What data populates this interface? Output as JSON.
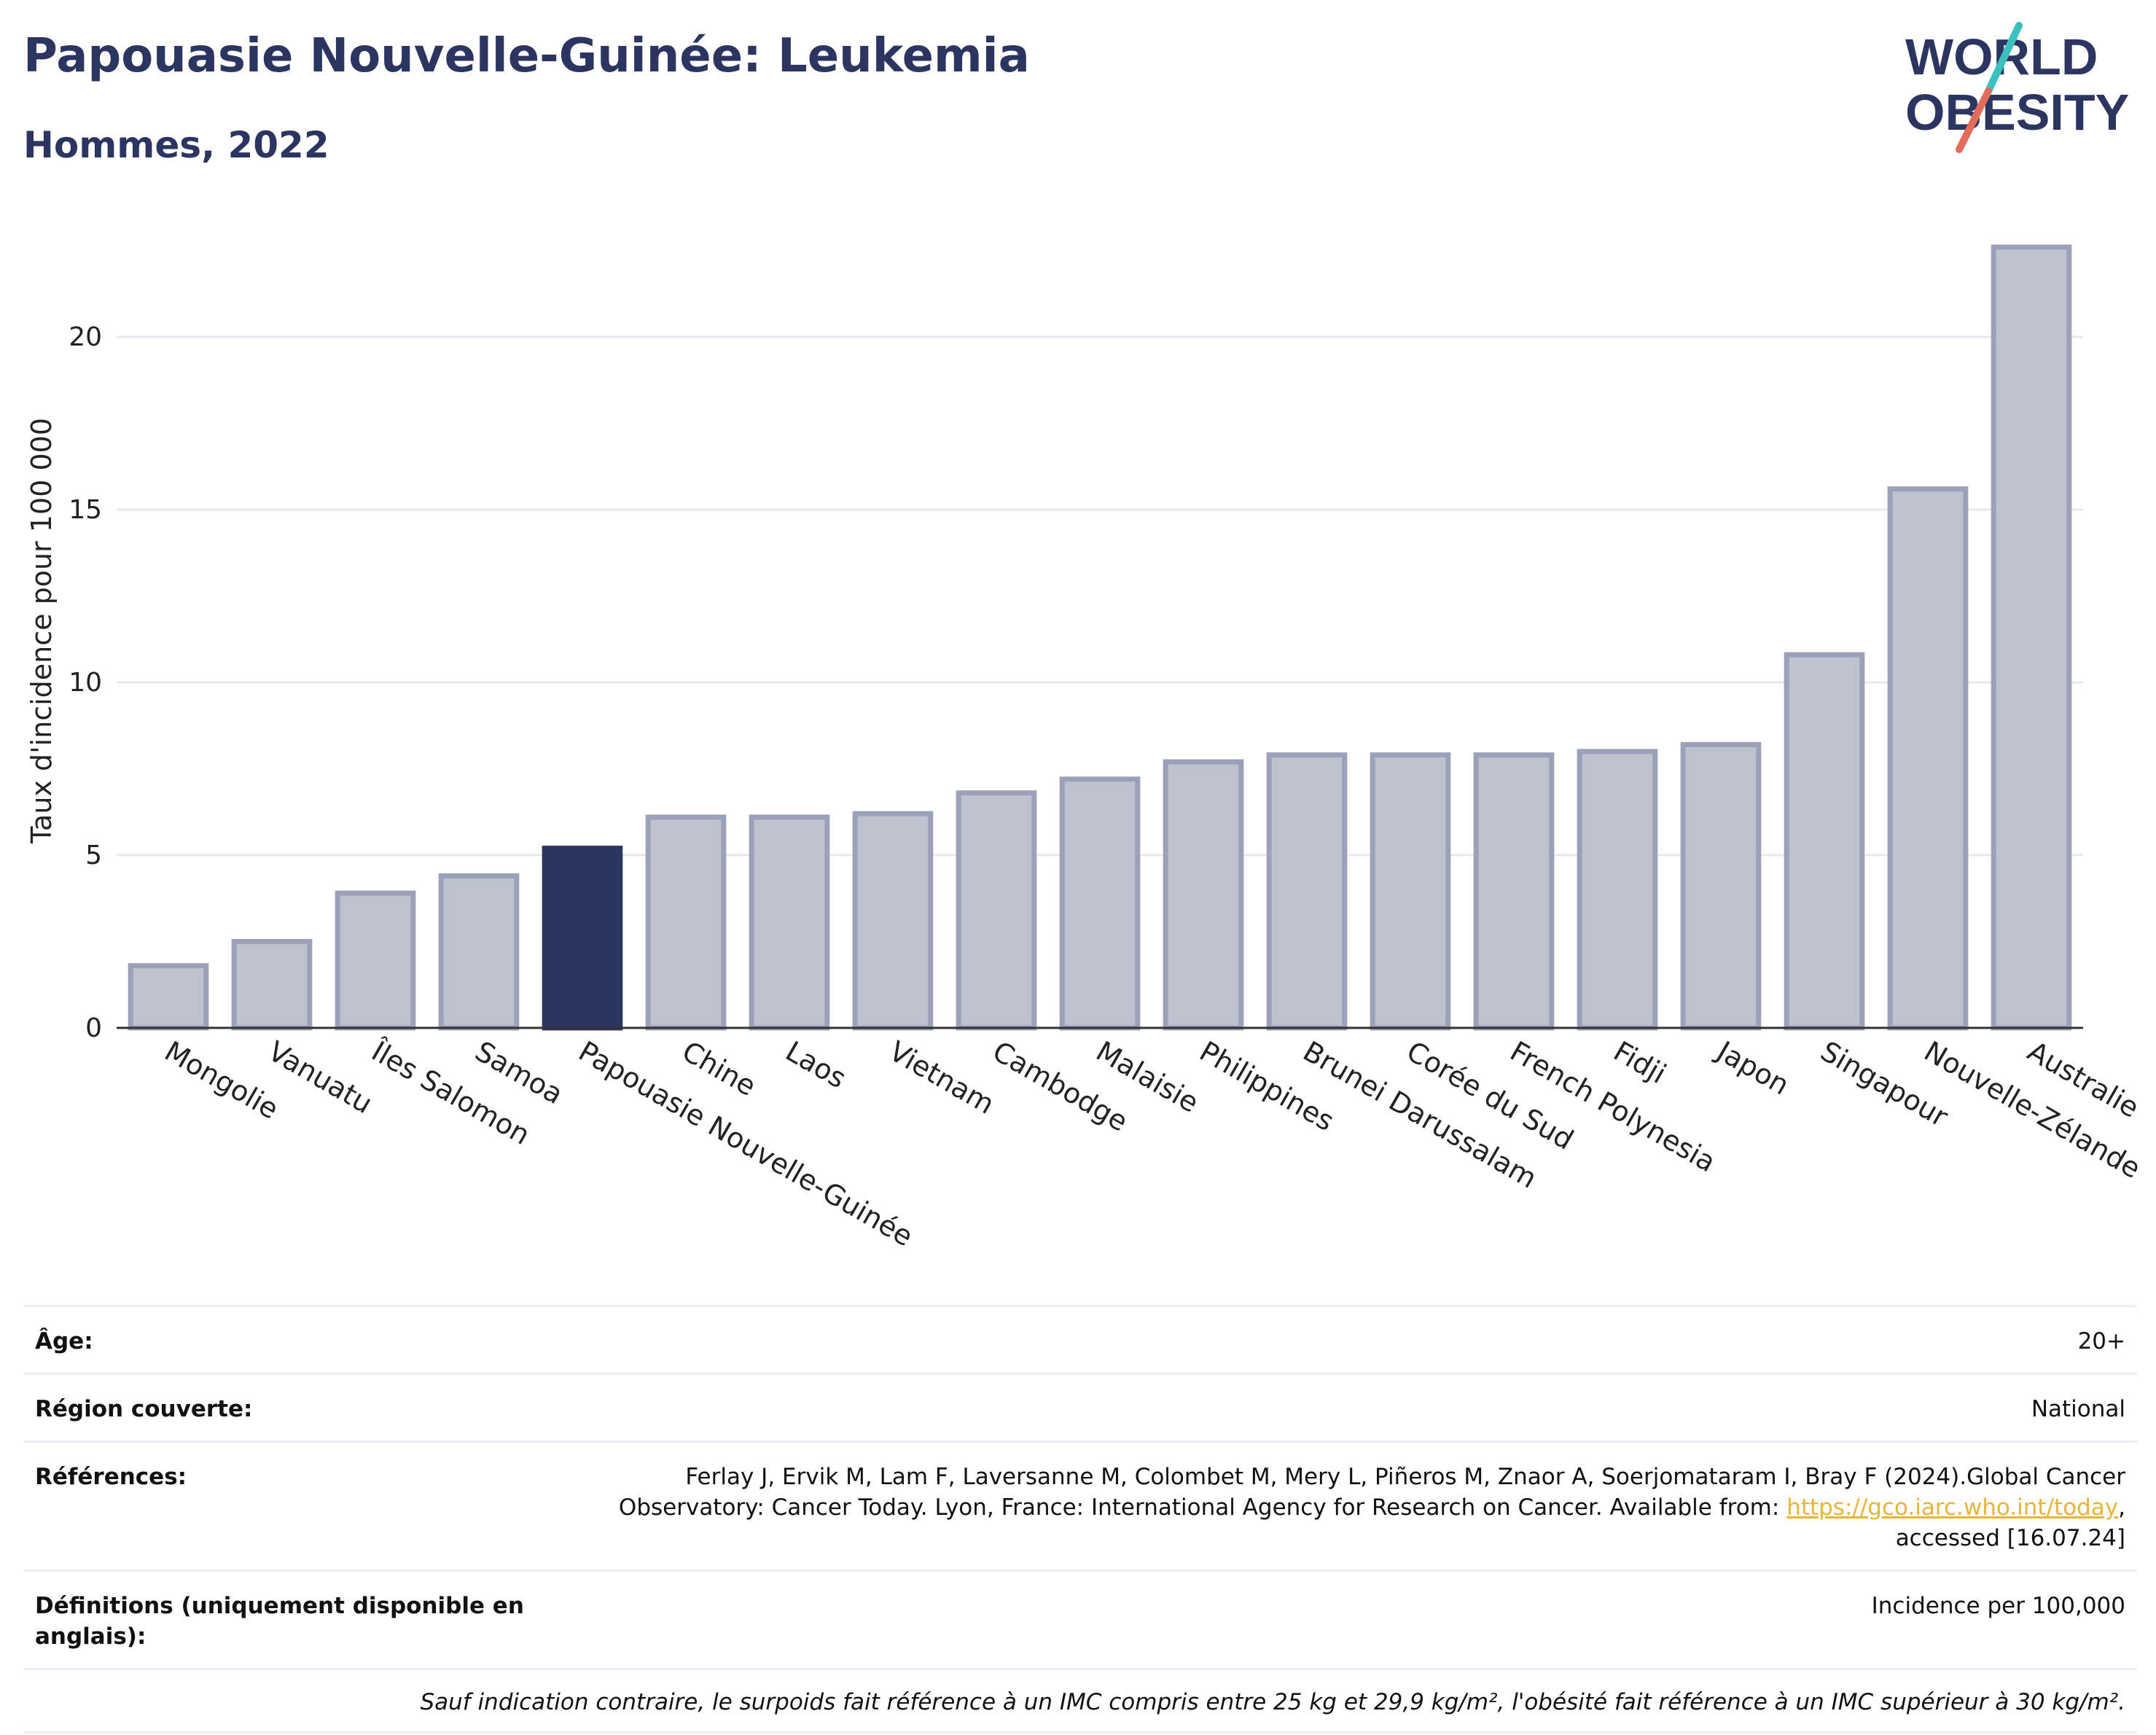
{
  "header": {
    "title": "Papouasie Nouvelle-Guinée: Leukemia",
    "subtitle": "Hommes, 2022"
  },
  "logo": {
    "line1": "WORLD",
    "line2": "OBESITY",
    "accent_teal": "#3bbfbf",
    "accent_red": "#e36b5a",
    "text_color": "#2b3560"
  },
  "chart_data": {
    "type": "bar",
    "ylabel": "Taux d'incidence pour 100 000",
    "xlabel": "",
    "ylim": [
      0,
      23
    ],
    "yticks": [
      0,
      5,
      10,
      15,
      20
    ],
    "grid": true,
    "highlight": "Papouasie Nouvelle-Guinée",
    "highlight_color": "#2b3560",
    "bar_color": "#bec2cf",
    "bar_edge_color": "#9aa1b8",
    "categories": [
      "Mongolie",
      "Vanuatu",
      "Îles Salomon",
      "Samoa",
      "Papouasie Nouvelle-Guinée",
      "Chine",
      "Laos",
      "Vietnam",
      "Cambodge",
      "Malaisie",
      "Philippines",
      "Brunei Darussalam",
      "Corée du Sud",
      "French Polynesia",
      "Fidji",
      "Japon",
      "Singapour",
      "Nouvelle-Zélande",
      "Australie"
    ],
    "values": [
      1.8,
      2.5,
      3.9,
      4.4,
      5.2,
      6.1,
      6.1,
      6.2,
      6.8,
      7.2,
      7.7,
      7.9,
      7.9,
      7.9,
      8.0,
      8.2,
      10.8,
      15.6,
      22.6
    ]
  },
  "info": {
    "age_label": "Âge:",
    "age_value": "20+",
    "region_label": "Région couverte:",
    "region_value": "National",
    "refs_label": "Références:",
    "refs_text1": "Ferlay J, Ervik M, Lam F, Laversanne M, Colombet M, Mery L, Piñeros M, Znaor A, Soerjomataram I, Bray F (2024).Global Cancer",
    "refs_text2": "Observatory: Cancer Today. Lyon, France: International Agency for Research on Cancer. Available from: ",
    "refs_link": "https://gco.iarc.who.int/today",
    "refs_text3": ",",
    "refs_text4": "accessed [16.07.24]",
    "defs_label": "Définitions (uniquement disponible en anglais):",
    "defs_value": "Incidence per 100,000",
    "note": "Sauf indication contraire, le surpoids fait référence à un IMC compris entre 25 kg et 29,9 kg/m², l'obésité fait référence à un IMC supérieur à 30 kg/m²."
  }
}
